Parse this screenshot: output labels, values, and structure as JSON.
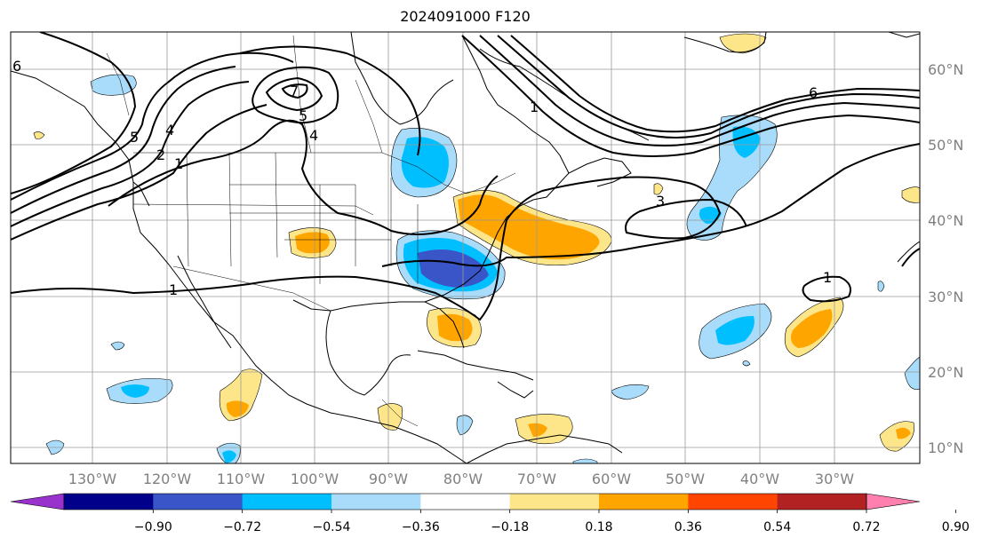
{
  "title": "2024091000 F120",
  "map": {
    "lon_labels": [
      "130°W",
      "120°W",
      "110°W",
      "100°W",
      "90°W",
      "80°W",
      "70°W",
      "60°W",
      "50°W",
      "40°W",
      "30°W"
    ],
    "lat_labels": [
      "60°N",
      "50°N",
      "40°N",
      "30°N",
      "20°N",
      "10°N"
    ],
    "contour_labels": [
      "6",
      "5",
      "4",
      "2",
      "1",
      "5",
      "4",
      "7",
      "6",
      "1",
      "3",
      "1",
      "1"
    ]
  },
  "colorbar": {
    "ticks": [
      "−0.90",
      "−0.72",
      "−0.54",
      "−0.36",
      "−0.18",
      "0.18",
      "0.36",
      "0.54",
      "0.72",
      "0.90"
    ],
    "colors": [
      "#9932cc",
      "#00008b",
      "#3a55c8",
      "#00bfff",
      "#a8dcfa",
      "#ffffff",
      "#fde68a",
      "#ffa500",
      "#ff4500",
      "#b22222",
      "#ff7fae"
    ]
  },
  "colors": {
    "strong_negative": "#3a55c8",
    "negative": "#00bfff",
    "weak_negative": "#a8dcfa",
    "weak_positive": "#fde68a",
    "positive": "#ffa500",
    "strong_positive": "#ff4500"
  }
}
